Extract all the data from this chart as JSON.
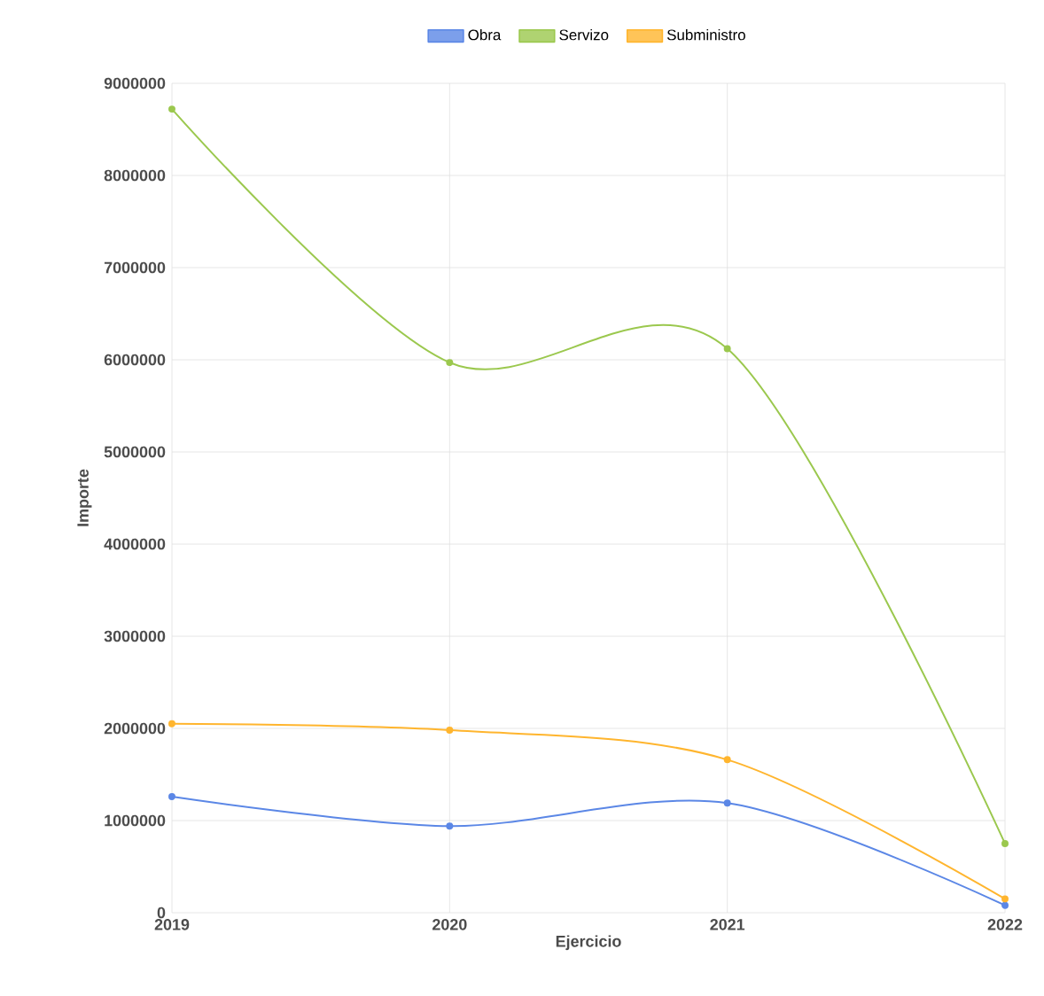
{
  "chart_data": {
    "type": "line",
    "xlabel": "Ejercicio",
    "ylabel": "Importe",
    "categories": [
      "2019",
      "2020",
      "2021",
      "2022"
    ],
    "series": [
      {
        "name": "Obra",
        "color": "#5b87e6",
        "values": [
          1260000,
          940000,
          1190000,
          80000
        ]
      },
      {
        "name": "Servizo",
        "color": "#9bc84e",
        "values": [
          8720000,
          5970000,
          6120000,
          750000
        ]
      },
      {
        "name": "Subministro",
        "color": "#ffb52e",
        "values": [
          2050000,
          1980000,
          1660000,
          150000
        ]
      }
    ],
    "ylim": [
      0,
      9000000
    ],
    "yticks": [
      0,
      1000000,
      2000000,
      3000000,
      4000000,
      5000000,
      6000000,
      7000000,
      8000000,
      9000000
    ],
    "grid": true,
    "legend": "top",
    "marker": "circle",
    "line_style": "solid"
  }
}
